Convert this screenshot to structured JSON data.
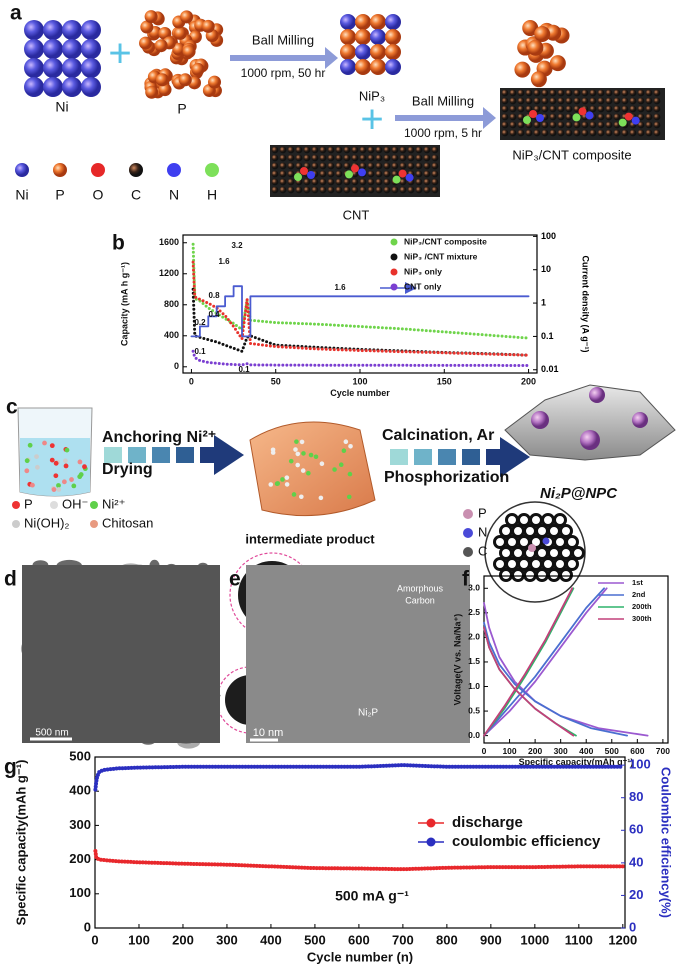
{
  "panel_a": {
    "label": "a",
    "reactants": [
      "Ni",
      "P"
    ],
    "step1": {
      "process": "Ball Milling",
      "condition": "1000 rpm, 50 hr"
    },
    "intermediate": "NiP₃",
    "step2": {
      "process": "Ball Milling",
      "condition": "1000 rpm, 5 hr"
    },
    "product": "NiP₃/CNT composite",
    "support": "CNT",
    "elements": [
      "Ni",
      "P",
      "O",
      "C",
      "N",
      "H"
    ]
  },
  "panel_c": {
    "label": "c",
    "step1": [
      "Anchoring Ni²⁺",
      "Drying"
    ],
    "species": [
      "P",
      "OH⁻",
      "Ni²⁺",
      "Ni(OH)₂",
      "Chitosan"
    ],
    "intermediate": "intermediate product",
    "step2": [
      "Calcination, Ar",
      "Phosphorization"
    ],
    "product": "Ni₂P@NPC",
    "elements": [
      "P",
      "N",
      "C"
    ]
  },
  "panel_d": {
    "label": "d",
    "scale_bar": "500 nm"
  },
  "panel_e": {
    "label": "e",
    "annotations": [
      "Amorphous",
      "Carbon",
      "Ni₂P"
    ],
    "scale_bar": "10 nm"
  },
  "chart_data": [
    {
      "label": "b",
      "type": "line",
      "xlabel": "Cycle number",
      "ylabel": "Capacity (mA h g⁻¹)",
      "y2label": "Current density (A g⁻¹)",
      "xlim": [
        -5,
        205
      ],
      "xticks": [
        0,
        50,
        100,
        150,
        200
      ],
      "ylim": [
        -80,
        1700
      ],
      "yticks": [
        0,
        400,
        800,
        1200,
        1600
      ],
      "y2lim": [
        0.008,
        110
      ],
      "y2ticks": [
        0.01,
        0.1,
        1,
        10,
        100
      ],
      "y2log": true,
      "annotations": [
        "0.1",
        "0.2",
        "0.4",
        "0.8",
        "1.6",
        "3.2",
        "1.6",
        "0.1"
      ],
      "series": [
        {
          "name": "NiP₃/CNT composite",
          "color": "#6fd44b",
          "x": [
            1,
            2,
            5,
            10,
            15,
            20,
            25,
            30,
            33,
            35,
            50,
            75,
            100,
            125,
            150,
            175,
            200
          ],
          "values": [
            1580,
            880,
            850,
            760,
            690,
            620,
            560,
            480,
            850,
            600,
            570,
            550,
            520,
            490,
            450,
            410,
            370
          ]
        },
        {
          "name": "NiP₃ /CNT mixture",
          "color": "#111111",
          "x": [
            1,
            2,
            5,
            10,
            15,
            20,
            25,
            30,
            33,
            35,
            50,
            75,
            100,
            125,
            150,
            175,
            200
          ],
          "values": [
            1000,
            400,
            380,
            350,
            320,
            280,
            240,
            200,
            380,
            400,
            280,
            250,
            225,
            205,
            185,
            170,
            150
          ]
        },
        {
          "name": "NiP₃ only",
          "color": "#e8322c",
          "x": [
            1,
            2,
            5,
            10,
            15,
            20,
            25,
            30,
            33,
            35,
            50,
            75,
            100,
            125,
            150,
            175,
            200
          ],
          "values": [
            1350,
            900,
            870,
            820,
            760,
            660,
            520,
            360,
            870,
            300,
            260,
            230,
            210,
            195,
            180,
            165,
            150
          ]
        },
        {
          "name": "CNT only",
          "color": "#7b3fd1",
          "x": [
            1,
            2,
            5,
            10,
            15,
            20,
            25,
            30,
            33,
            35,
            50,
            75,
            100,
            125,
            150,
            175,
            200
          ],
          "values": [
            200,
            120,
            80,
            55,
            45,
            35,
            30,
            25,
            40,
            25,
            22,
            20,
            20,
            19,
            18,
            18,
            17
          ]
        },
        {
          "color": "#4a5bd0",
          "axis": "y2",
          "x": [
            0,
            5,
            5,
            10,
            10,
            15,
            15,
            20,
            20,
            25,
            25,
            30,
            30,
            35,
            35,
            200
          ],
          "values": [
            0.1,
            0.1,
            0.2,
            0.2,
            0.4,
            0.4,
            0.8,
            0.8,
            1.6,
            1.6,
            3.2,
            3.2,
            0.1,
            0.1,
            1.6,
            1.6
          ]
        }
      ]
    },
    {
      "label": "f",
      "type": "line",
      "xlabel": "Specific capacity(mAh g⁻¹)",
      "ylabel": "Voltage(V vs. Na/Na⁺)",
      "xlim": [
        0,
        720
      ],
      "xticks": [
        0,
        100,
        200,
        300,
        400,
        500,
        600,
        700
      ],
      "ylim": [
        -0.15,
        3.25
      ],
      "yticks": [
        {
          "value": 0,
          "label": "0.0"
        },
        0.5,
        {
          "value": 1,
          "label": "1.0"
        },
        1.5,
        {
          "value": 2,
          "label": "2.0"
        },
        2.5,
        {
          "value": 3,
          "label": "3.0"
        }
      ],
      "series": [
        {
          "name": "1st",
          "color": "#9b59d0",
          "x": [
            0,
            20,
            60,
            120,
            200,
            300,
            450,
            640,
            null,
            0,
            100,
            200,
            300,
            400,
            480
          ],
          "values": [
            2.7,
            2.2,
            1.6,
            1.1,
            0.7,
            0.4,
            0.15,
            0,
            null,
            0,
            0.5,
            1.1,
            1.8,
            2.5,
            3.0
          ]
        },
        {
          "name": "2nd",
          "color": "#4a6fd0",
          "x": [
            0,
            20,
            60,
            120,
            200,
            300,
            420,
            560,
            null,
            0,
            100,
            200,
            300,
            400,
            470
          ],
          "values": [
            2.3,
            1.9,
            1.45,
            1.05,
            0.7,
            0.4,
            0.15,
            0,
            null,
            0,
            0.6,
            1.2,
            1.9,
            2.6,
            3.0
          ]
        },
        {
          "name": "200th",
          "color": "#2fb36b",
          "x": [
            0,
            20,
            60,
            120,
            200,
            280,
            360,
            null,
            0,
            80,
            160,
            240,
            300,
            350
          ],
          "values": [
            2.2,
            1.8,
            1.35,
            0.95,
            0.55,
            0.25,
            0,
            null,
            0,
            0.55,
            1.2,
            1.9,
            2.5,
            3.0
          ]
        },
        {
          "name": "300th",
          "color": "#c2407a",
          "x": [
            0,
            20,
            60,
            120,
            200,
            280,
            350,
            null,
            0,
            80,
            160,
            240,
            300,
            345
          ],
          "values": [
            2.2,
            1.8,
            1.35,
            0.95,
            0.55,
            0.25,
            0,
            null,
            0,
            0.6,
            1.25,
            1.95,
            2.55,
            3.0
          ]
        }
      ]
    },
    {
      "label": "g",
      "type": "line",
      "xlabel": "Cycle number (n)",
      "ylabel": "Specific capacity(mAh g⁻¹)",
      "y2label": "Coulombic efficiency(%)",
      "xlim": [
        0,
        1205
      ],
      "xticks": [
        0,
        100,
        200,
        300,
        400,
        500,
        600,
        700,
        800,
        900,
        1000,
        1100,
        1200
      ],
      "ylim": [
        0,
        500
      ],
      "yticks": [
        0,
        100,
        200,
        300,
        400,
        500
      ],
      "y2lim": [
        0,
        105
      ],
      "y2ticks": [
        0,
        20,
        40,
        60,
        80,
        100
      ],
      "annotations": [
        "500 mA g⁻¹"
      ],
      "series": [
        {
          "name": "discharge",
          "color": "#e8282c",
          "x": [
            1,
            3,
            10,
            50,
            100,
            200,
            300,
            400,
            500,
            600,
            700,
            800,
            900,
            1000,
            1100,
            1200
          ],
          "values": [
            225,
            205,
            200,
            195,
            192,
            188,
            185,
            180,
            175,
            174,
            172,
            176,
            178,
            178,
            180,
            180
          ]
        },
        {
          "name": "coulombic efficiency",
          "color": "#2b2fc0",
          "axis": "y2",
          "x": [
            1,
            3,
            5,
            10,
            20,
            50,
            100,
            200,
            400,
            600,
            700,
            800,
            1000,
            1200
          ],
          "values": [
            85,
            90,
            93,
            96,
            97,
            98,
            98.5,
            99,
            99,
            99,
            100,
            99,
            99,
            99
          ]
        }
      ]
    }
  ]
}
